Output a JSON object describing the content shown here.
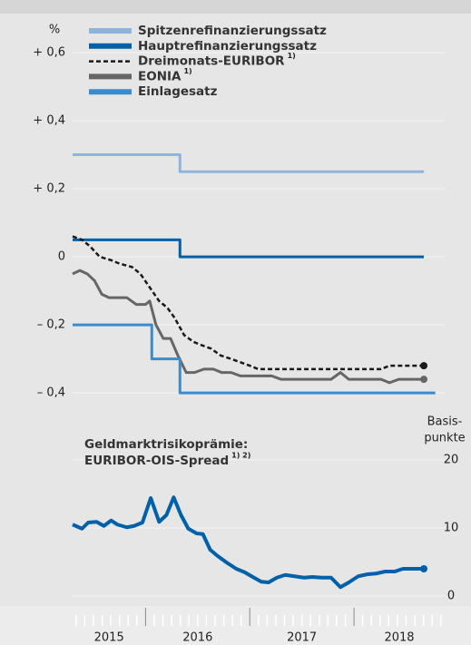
{
  "chart_data": [
    {
      "type": "line",
      "y_unit": "%",
      "ylim": [
        -0.445,
        0.7
      ],
      "yticks": [
        {
          "value": 0.6,
          "label": "+ 0,6"
        },
        {
          "value": 0.4,
          "label": "+ 0,4"
        },
        {
          "value": 0.2,
          "label": "+ 0,2"
        },
        0,
        {
          "value": -0.2,
          "label": "– 0,2"
        },
        {
          "value": -0.4,
          "label": "– 0,4"
        }
      ],
      "xlim": [
        2015.3,
        2018.87
      ],
      "grid": true,
      "series": [
        {
          "name": "Spitzenrefinanzierungssatz",
          "color": "#8fb4dc",
          "x": [
            2015.3,
            2016.33,
            2016.33,
            2018.67
          ],
          "values": [
            0.3,
            0.3,
            0.25,
            0.25
          ]
        },
        {
          "name": "Hauptrefinanzierungssatz",
          "color": "#0060a8",
          "x": [
            2015.3,
            2016.33,
            2016.33,
            2018.67
          ],
          "values": [
            0.05,
            0.05,
            0,
            0
          ]
        },
        {
          "name": "Dreimonats-EURIBOR",
          "note": "1)",
          "color": "#1a1a1a",
          "dashed": true,
          "end_marker": true,
          "x": [
            2015.3,
            2015.39,
            2015.47,
            2015.56,
            2015.67,
            2015.75,
            2015.87,
            2015.95,
            2016.04,
            2016.13,
            2016.21,
            2016.28,
            2016.37,
            2016.46,
            2016.54,
            2016.63,
            2016.72,
            2016.82,
            2016.91,
            2017.0,
            2017.08,
            2018.26,
            2018.34,
            2018.67
          ],
          "values": [
            0.06,
            0.05,
            0.03,
            0.0,
            -0.01,
            -0.02,
            -0.03,
            -0.05,
            -0.09,
            -0.13,
            -0.15,
            -0.18,
            -0.23,
            -0.25,
            -0.26,
            -0.27,
            -0.29,
            -0.3,
            -0.31,
            -0.32,
            -0.33,
            -0.33,
            -0.32,
            -0.32
          ]
        },
        {
          "name": "EONIA",
          "note": "1)",
          "color": "#666666",
          "end_marker": true,
          "x": [
            2015.3,
            2015.37,
            2015.44,
            2015.51,
            2015.58,
            2015.65,
            2015.82,
            2015.91,
            2016.0,
            2016.04,
            2016.1,
            2016.17,
            2016.24,
            2016.31,
            2016.39,
            2016.47,
            2016.56,
            2016.65,
            2016.73,
            2016.82,
            2016.91,
            2017.21,
            2017.3,
            2017.78,
            2017.87,
            2017.95,
            2018.26,
            2018.34,
            2018.43,
            2018.6,
            2018.67
          ],
          "values": [
            -0.05,
            -0.04,
            -0.05,
            -0.07,
            -0.11,
            -0.12,
            -0.12,
            -0.14,
            -0.14,
            -0.13,
            -0.2,
            -0.24,
            -0.24,
            -0.29,
            -0.34,
            -0.34,
            -0.33,
            -0.33,
            -0.34,
            -0.34,
            -0.35,
            -0.35,
            -0.36,
            -0.36,
            -0.34,
            -0.36,
            -0.36,
            -0.37,
            -0.36,
            -0.36,
            -0.36
          ]
        },
        {
          "name": "Einlagesatz",
          "color": "#3a8ccc",
          "x": [
            2015.3,
            2016.06,
            2016.06,
            2016.33,
            2016.33,
            2018.78
          ],
          "values": [
            -0.2,
            -0.2,
            -0.3,
            -0.3,
            -0.4,
            -0.4
          ]
        }
      ]
    },
    {
      "type": "line",
      "annotation": "Geldmarktrisikoprämie:",
      "subtitle": "EURIBOR-OIS-Spread",
      "subtitle_note": "1) 2)",
      "y_label": [
        "Basis-",
        "punkte"
      ],
      "y_side": "right",
      "ylim": [
        -1,
        24.9
      ],
      "yticks": [
        0,
        10,
        20
      ],
      "xlim": [
        2015.3,
        2018.87
      ],
      "xticks": [
        2015,
        2016,
        2017,
        2018
      ],
      "grid": true,
      "series": [
        {
          "name": "EURIBOR-OIS-Spread",
          "color": "#0060a8",
          "end_marker": true,
          "x": [
            2015.3,
            2015.39,
            2015.45,
            2015.53,
            2015.6,
            2015.67,
            2015.73,
            2015.82,
            2015.89,
            2015.97,
            2016.05,
            2016.13,
            2016.2,
            2016.27,
            2016.34,
            2016.41,
            2016.49,
            2016.55,
            2016.62,
            2016.69,
            2016.78,
            2016.87,
            2016.95,
            2017.04,
            2017.11,
            2017.18,
            2017.26,
            2017.34,
            2017.43,
            2017.52,
            2017.6,
            2017.69,
            2017.78,
            2017.87,
            2017.95,
            2018.04,
            2018.13,
            2018.21,
            2018.3,
            2018.39,
            2018.47,
            2018.56,
            2018.67
          ],
          "values": [
            10.5,
            9.9,
            10.8,
            10.9,
            10.3,
            11.1,
            10.5,
            10.1,
            10.3,
            10.8,
            14.4,
            10.9,
            11.9,
            14.5,
            11.9,
            9.9,
            9.2,
            9.1,
            6.8,
            5.9,
            4.9,
            4.0,
            3.5,
            2.7,
            2.1,
            2.0,
            2.7,
            3.1,
            2.9,
            2.7,
            2.8,
            2.7,
            2.7,
            1.3,
            2.0,
            2.9,
            3.2,
            3.3,
            3.6,
            3.6,
            4.0,
            4.0,
            4.0
          ]
        }
      ]
    }
  ]
}
